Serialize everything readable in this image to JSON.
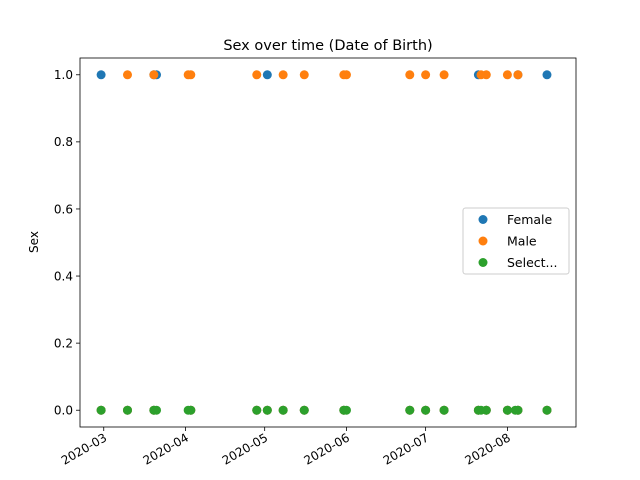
{
  "chart_data": {
    "type": "scatter",
    "title": "Sex over time (Date of Birth)",
    "xlabel": "",
    "ylabel": "Sex",
    "xlim": [
      "2020-02-21",
      "2020-08-27"
    ],
    "ylim": [
      -0.05,
      1.05
    ],
    "x_ticks": [
      "2020-03-01",
      "2020-04-01",
      "2020-05-01",
      "2020-06-01",
      "2020-07-01",
      "2020-08-01"
    ],
    "x_tick_labels": [
      "2020-03",
      "2020-04",
      "2020-05",
      "2020-06",
      "2020-07",
      "2020-08"
    ],
    "y_ticks": [
      0.0,
      0.2,
      0.4,
      0.6,
      0.8,
      1.0
    ],
    "y_tick_labels": [
      "0.0",
      "0.2",
      "0.4",
      "0.6",
      "0.8",
      "1.0"
    ],
    "grid": false,
    "legend_position": "center-right",
    "series": [
      {
        "name": "Female",
        "color": "#1f77b4",
        "points": [
          {
            "x": "2020-02-29",
            "y": 1
          },
          {
            "x": "2020-03-20",
            "y": 1
          },
          {
            "x": "2020-03-21",
            "y": 1
          },
          {
            "x": "2020-05-02",
            "y": 1
          },
          {
            "x": "2020-07-21",
            "y": 1
          },
          {
            "x": "2020-08-05",
            "y": 1
          },
          {
            "x": "2020-08-16",
            "y": 1
          },
          {
            "x": "2020-02-29",
            "y": 0
          },
          {
            "x": "2020-03-10",
            "y": 0
          },
          {
            "x": "2020-03-20",
            "y": 0
          },
          {
            "x": "2020-04-03",
            "y": 0
          },
          {
            "x": "2020-04-28",
            "y": 0
          },
          {
            "x": "2020-05-02",
            "y": 0
          },
          {
            "x": "2020-05-08",
            "y": 0
          },
          {
            "x": "2020-05-16",
            "y": 0
          },
          {
            "x": "2020-05-31",
            "y": 0
          },
          {
            "x": "2020-06-25",
            "y": 0
          },
          {
            "x": "2020-07-01",
            "y": 0
          },
          {
            "x": "2020-07-08",
            "y": 0
          },
          {
            "x": "2020-07-21",
            "y": 0
          },
          {
            "x": "2020-07-24",
            "y": 0
          },
          {
            "x": "2020-08-01",
            "y": 0
          },
          {
            "x": "2020-08-05",
            "y": 0
          },
          {
            "x": "2020-08-16",
            "y": 0
          }
        ]
      },
      {
        "name": "Male",
        "color": "#ff7f0e",
        "points": [
          {
            "x": "2020-03-10",
            "y": 1
          },
          {
            "x": "2020-03-20",
            "y": 1
          },
          {
            "x": "2020-04-02",
            "y": 1
          },
          {
            "x": "2020-04-03",
            "y": 1
          },
          {
            "x": "2020-04-28",
            "y": 1
          },
          {
            "x": "2020-05-08",
            "y": 1
          },
          {
            "x": "2020-05-16",
            "y": 1
          },
          {
            "x": "2020-05-31",
            "y": 1
          },
          {
            "x": "2020-06-01",
            "y": 1
          },
          {
            "x": "2020-06-25",
            "y": 1
          },
          {
            "x": "2020-07-01",
            "y": 1
          },
          {
            "x": "2020-07-08",
            "y": 1
          },
          {
            "x": "2020-07-22",
            "y": 1
          },
          {
            "x": "2020-07-24",
            "y": 1
          },
          {
            "x": "2020-08-01",
            "y": 1
          },
          {
            "x": "2020-08-05",
            "y": 1
          },
          {
            "x": "2020-02-29",
            "y": 0
          },
          {
            "x": "2020-03-10",
            "y": 0
          },
          {
            "x": "2020-03-20",
            "y": 0
          },
          {
            "x": "2020-04-03",
            "y": 0
          },
          {
            "x": "2020-04-28",
            "y": 0
          },
          {
            "x": "2020-05-02",
            "y": 0
          },
          {
            "x": "2020-05-08",
            "y": 0
          },
          {
            "x": "2020-05-16",
            "y": 0
          },
          {
            "x": "2020-05-31",
            "y": 0
          },
          {
            "x": "2020-06-25",
            "y": 0
          },
          {
            "x": "2020-07-01",
            "y": 0
          },
          {
            "x": "2020-07-08",
            "y": 0
          },
          {
            "x": "2020-07-21",
            "y": 0
          },
          {
            "x": "2020-07-24",
            "y": 0
          },
          {
            "x": "2020-08-01",
            "y": 0
          },
          {
            "x": "2020-08-05",
            "y": 0
          },
          {
            "x": "2020-08-16",
            "y": 0
          }
        ]
      },
      {
        "name": "Select...",
        "color": "#2ca02c",
        "points": [
          {
            "x": "2020-02-29",
            "y": 0
          },
          {
            "x": "2020-03-10",
            "y": 0
          },
          {
            "x": "2020-03-20",
            "y": 0
          },
          {
            "x": "2020-03-21",
            "y": 0
          },
          {
            "x": "2020-04-02",
            "y": 0
          },
          {
            "x": "2020-04-03",
            "y": 0
          },
          {
            "x": "2020-04-28",
            "y": 0
          },
          {
            "x": "2020-05-02",
            "y": 0
          },
          {
            "x": "2020-05-08",
            "y": 0
          },
          {
            "x": "2020-05-16",
            "y": 0
          },
          {
            "x": "2020-05-31",
            "y": 0
          },
          {
            "x": "2020-06-01",
            "y": 0
          },
          {
            "x": "2020-06-25",
            "y": 0
          },
          {
            "x": "2020-07-01",
            "y": 0
          },
          {
            "x": "2020-07-08",
            "y": 0
          },
          {
            "x": "2020-07-21",
            "y": 0
          },
          {
            "x": "2020-07-22",
            "y": 0
          },
          {
            "x": "2020-07-24",
            "y": 0
          },
          {
            "x": "2020-08-01",
            "y": 0
          },
          {
            "x": "2020-08-04",
            "y": 0
          },
          {
            "x": "2020-08-05",
            "y": 0
          },
          {
            "x": "2020-08-16",
            "y": 0
          }
        ]
      }
    ]
  }
}
